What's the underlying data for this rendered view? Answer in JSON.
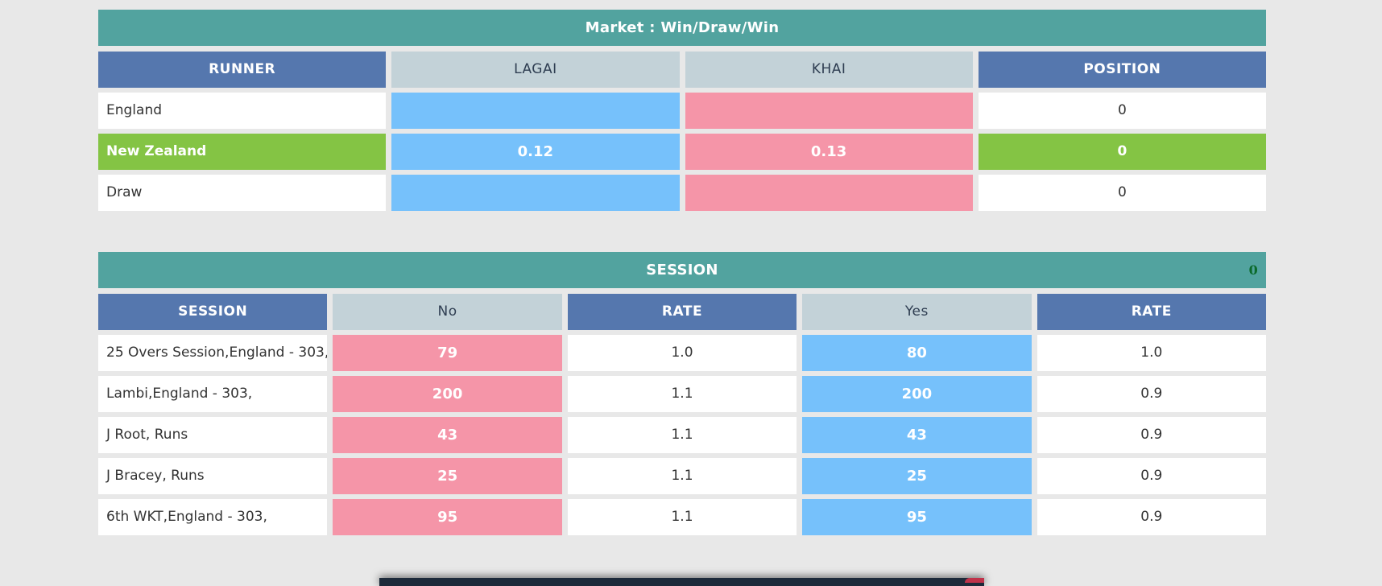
{
  "market": {
    "title": "Market : Win/Draw/Win",
    "headers": [
      "RUNNER",
      "LAGAI",
      "KHAI",
      "POSITION"
    ],
    "rows": [
      {
        "runner": "England",
        "lagai": "",
        "khai": "",
        "position": "0",
        "highlighted": false
      },
      {
        "runner": "New Zealand",
        "lagai": "0.12",
        "khai": "0.13",
        "position": "0",
        "highlighted": true
      },
      {
        "runner": "Draw",
        "lagai": "",
        "khai": "",
        "position": "0",
        "highlighted": false
      }
    ]
  },
  "session": {
    "title": "SESSION",
    "count": "0",
    "headers": [
      "SESSION",
      "No",
      "RATE",
      "Yes",
      "RATE"
    ],
    "rows": [
      {
        "name": "25 Overs Session,England - 303,",
        "no": "79",
        "no_rate": "1.0",
        "yes": "80",
        "yes_rate": "1.0"
      },
      {
        "name": "Lambi,England - 303,",
        "no": "200",
        "no_rate": "1.1",
        "yes": "200",
        "yes_rate": "0.9"
      },
      {
        "name": "J Root, Runs",
        "no": "43",
        "no_rate": "1.1",
        "yes": "43",
        "yes_rate": "0.9"
      },
      {
        "name": "J Bracey, Runs",
        "no": "25",
        "no_rate": "1.1",
        "yes": "25",
        "yes_rate": "0.9"
      },
      {
        "name": "6th WKT,England - 303,",
        "no": "95",
        "no_rate": "1.1",
        "yes": "95",
        "yes_rate": "0.9"
      }
    ]
  },
  "colors": {
    "title_bar": "#52a39f",
    "header_blue": "#5577ae",
    "header_grey": "#c3d2d8",
    "lagai_yes": "#76c1fb",
    "khai_no": "#f595a8",
    "highlight_green": "#84c444",
    "page_bg": "#e8e8e8"
  }
}
